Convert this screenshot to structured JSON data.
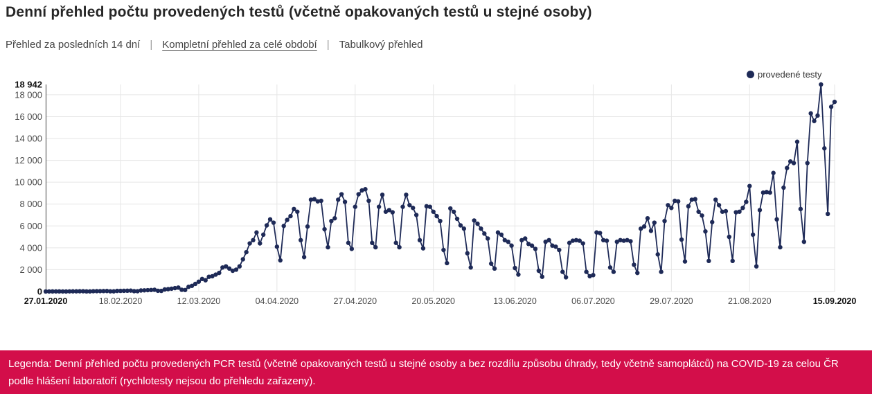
{
  "header": {
    "title": "Denní přehled počtu provedených testů (včetně opakovaných testů u stejné osoby)"
  },
  "nav": {
    "separator": "|",
    "items": [
      {
        "label": "Přehled za posledních 14 dní",
        "active": false
      },
      {
        "label": "Kompletní přehled za celé období",
        "active": true
      },
      {
        "label": "Tabulkový přehled",
        "active": false
      }
    ]
  },
  "chart_data": {
    "type": "line",
    "title": "",
    "xlabel": "",
    "ylabel": "",
    "grid": true,
    "legend_position": "top-right",
    "marker": "circle",
    "ylim": [
      0,
      18942
    ],
    "y_ticks": [
      0,
      2000,
      4000,
      6000,
      8000,
      10000,
      12000,
      14000,
      16000,
      18000
    ],
    "y_max_annotation": {
      "value": 18942,
      "label": "18 942",
      "bold": true
    },
    "x_start_date": "27.01.2020",
    "x_end_date": "15.09.2020",
    "x_ticks": [
      {
        "day": 0,
        "label": "27.01.2020",
        "bold": true
      },
      {
        "day": 22,
        "label": "18.02.2020",
        "bold": false
      },
      {
        "day": 45,
        "label": "12.03.2020",
        "bold": false
      },
      {
        "day": 68,
        "label": "04.04.2020",
        "bold": false
      },
      {
        "day": 91,
        "label": "27.04.2020",
        "bold": false
      },
      {
        "day": 114,
        "label": "20.05.2020",
        "bold": false
      },
      {
        "day": 138,
        "label": "13.06.2020",
        "bold": false
      },
      {
        "day": 161,
        "label": "06.07.2020",
        "bold": false
      },
      {
        "day": 184,
        "label": "29.07.2020",
        "bold": false
      },
      {
        "day": 207,
        "label": "21.08.2020",
        "bold": false
      },
      {
        "day": 232,
        "label": "15.09.2020",
        "bold": true
      }
    ],
    "series": [
      {
        "name": "provedené testy",
        "color": "#1e2a57",
        "values": [
          4,
          6,
          8,
          10,
          12,
          5,
          4,
          15,
          18,
          20,
          24,
          28,
          12,
          10,
          30,
          34,
          38,
          42,
          48,
          20,
          16,
          55,
          60,
          68,
          75,
          85,
          35,
          30,
          95,
          110,
          125,
          140,
          160,
          70,
          60,
          190,
          220,
          260,
          310,
          360,
          160,
          140,
          430,
          520,
          700,
          900,
          1150,
          1030,
          1350,
          1400,
          1550,
          1700,
          2200,
          2300,
          2100,
          1900,
          2000,
          2300,
          2950,
          3600,
          4400,
          4700,
          5400,
          4400,
          5200,
          6050,
          6600,
          6300,
          4100,
          2850,
          6000,
          6550,
          6900,
          7550,
          7300,
          4700,
          3150,
          5950,
          8400,
          8450,
          8250,
          8300,
          5700,
          4050,
          6450,
          6700,
          8400,
          8900,
          8200,
          4450,
          3900,
          7750,
          8900,
          9250,
          9363,
          8300,
          4450,
          4050,
          7750,
          8850,
          7300,
          7450,
          7250,
          4450,
          4050,
          7750,
          8850,
          7900,
          7650,
          7000,
          4700,
          3950,
          7800,
          7750,
          7300,
          6900,
          6450,
          3800,
          2600,
          7600,
          7300,
          6650,
          6050,
          5750,
          3500,
          2200,
          6500,
          6200,
          5750,
          5300,
          4850,
          2550,
          2100,
          5400,
          5200,
          4700,
          4550,
          4200,
          2150,
          1550,
          4700,
          4850,
          4350,
          4200,
          3900,
          1900,
          1350,
          4550,
          4700,
          4200,
          4100,
          3800,
          1800,
          1300,
          4450,
          4650,
          4700,
          4650,
          4400,
          1800,
          1400,
          1500,
          5400,
          5350,
          4700,
          4650,
          2200,
          1800,
          4550,
          4700,
          4650,
          4700,
          4600,
          2450,
          1700,
          5750,
          5950,
          6700,
          5550,
          6300,
          3400,
          1800,
          6450,
          7900,
          7650,
          8300,
          8250,
          4750,
          2750,
          7800,
          8400,
          8450,
          7300,
          6950,
          5500,
          2800,
          6350,
          8400,
          7900,
          7300,
          7350,
          5000,
          2800,
          7250,
          7300,
          7650,
          8200,
          9650,
          5200,
          2300,
          7450,
          9050,
          9100,
          9050,
          10850,
          6600,
          4050,
          9500,
          11300,
          11900,
          11750,
          13700,
          7550,
          4550,
          11750,
          16300,
          15600,
          16100,
          18942,
          13100,
          7100,
          16900,
          17350
        ]
      }
    ]
  },
  "legend_banner": {
    "text": "Legenda: Denní přehled počtu provedených PCR testů (včetně opakovaných testů u stejné osoby a bez rozdílu způsobu úhrady, tedy včetně samoplátců) na COVID-19 za celou ČR podle hlášení laboratoří (rychlotesty nejsou do přehledu zařazeny).",
    "background": "#d30e4a",
    "text_color": "#ffffff"
  }
}
